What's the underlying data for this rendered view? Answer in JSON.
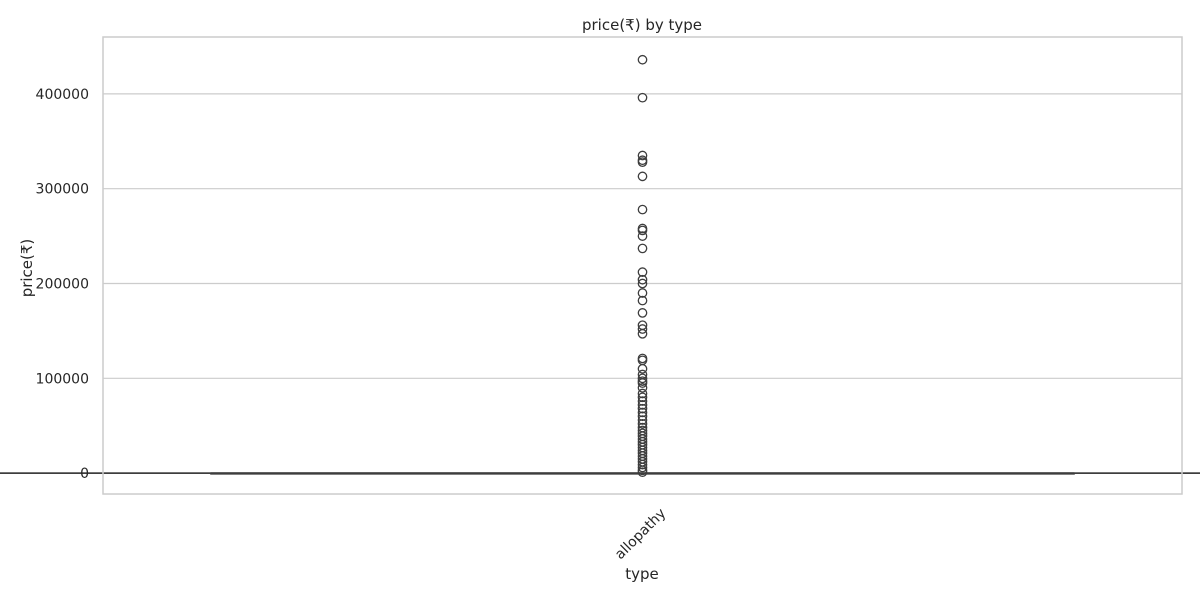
{
  "chart_data": {
    "type": "box",
    "title": "price(₹) by type",
    "xlabel": "type",
    "ylabel": "price(₹)",
    "categories": [
      "allopathy"
    ],
    "ylim": [
      -22000,
      460000
    ],
    "yticks": [
      0,
      100000,
      200000,
      300000,
      400000
    ],
    "ytick_labels": [
      "0",
      "100000",
      "200000",
      "300000",
      "400000"
    ],
    "grid": true,
    "colors": {
      "box": "#3d3d3d",
      "grid": "#cccccc"
    },
    "boxes": [
      {
        "category": "allopathy",
        "whisker_low": 0,
        "q1": 0,
        "median": 0,
        "q3": 0,
        "whisker_high": 0,
        "outliers": [
          436000,
          396000,
          335000,
          330000,
          328000,
          313000,
          278000,
          258000,
          256000,
          250000,
          237000,
          212000,
          204000,
          200000,
          190000,
          182000,
          169000,
          156000,
          152000,
          147000,
          121000,
          119000,
          110000,
          104000,
          100000,
          97000,
          95000,
          90000,
          84000,
          80000,
          76000,
          72000,
          68000,
          64000,
          60000,
          56000,
          52000,
          48000,
          45000,
          42000,
          39000,
          36000,
          33000,
          30000,
          27000,
          24000,
          21000,
          18000,
          15000,
          12000,
          9000,
          6000,
          3000,
          1000
        ]
      }
    ]
  }
}
